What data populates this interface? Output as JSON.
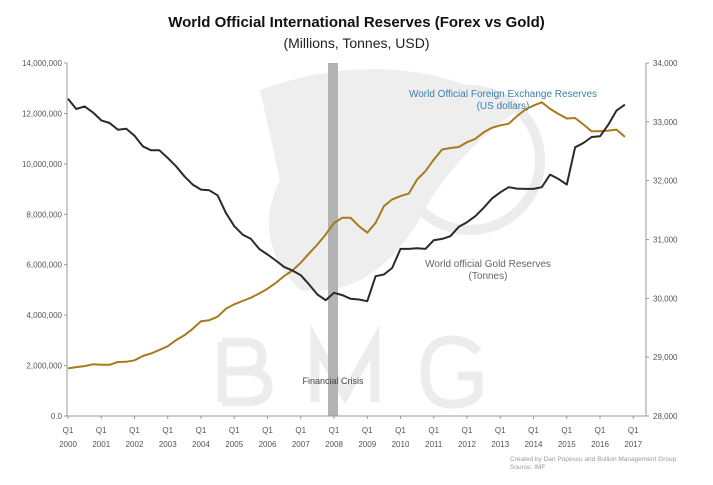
{
  "chart_data": {
    "type": "line",
    "title": "World Official International Reserves (Forex vs Gold)",
    "subtitle": "(Millions, Tonnes, USD)",
    "x_tick_labels": [
      [
        "Q1",
        "2000"
      ],
      [
        "Q1",
        "2001"
      ],
      [
        "Q1",
        "2002"
      ],
      [
        "Q1",
        "2003"
      ],
      [
        "Q1",
        "2004"
      ],
      [
        "Q1",
        "2005"
      ],
      [
        "Q1",
        "2006"
      ],
      [
        "Q1",
        "2007"
      ],
      [
        "Q1",
        "2008"
      ],
      [
        "Q1",
        "2009"
      ],
      [
        "Q1",
        "2010"
      ],
      [
        "Q1",
        "2011"
      ],
      [
        "Q1",
        "2012"
      ],
      [
        "Q1",
        "2013"
      ],
      [
        "Q1",
        "2014"
      ],
      [
        "Q1",
        "2015"
      ],
      [
        "Q1",
        "2016"
      ],
      [
        "Q1",
        "2017"
      ]
    ],
    "x_start": "2000 Q1",
    "x_step": "quarter",
    "left_axis": {
      "range": [
        0,
        14000000
      ],
      "ticks": [
        "0.0",
        "2,000,000",
        "4,000,000",
        "6,000,000",
        "8,000,000",
        "10,000,000",
        "12,000,000",
        "14,000,000"
      ]
    },
    "right_axis": {
      "range": [
        28000,
        34000
      ],
      "ticks": [
        "28,000",
        "29,000",
        "30,000",
        "31,000",
        "32,000",
        "33,000",
        "34,000"
      ]
    },
    "grid": false,
    "series": [
      {
        "name": "World Official Foreign Exchange Reserves\n(US dollars)",
        "axis": "left",
        "color": "#a87a1e",
        "label_color": "#3a7fb0",
        "values": [
          1889000,
          1940000,
          1980000,
          2050000,
          2030000,
          2030000,
          2140000,
          2150000,
          2210000,
          2380000,
          2480000,
          2620000,
          2770000,
          3010000,
          3200000,
          3460000,
          3760000,
          3800000,
          3940000,
          4250000,
          4430000,
          4560000,
          4690000,
          4860000,
          5050000,
          5280000,
          5550000,
          5770000,
          6080000,
          6450000,
          6800000,
          7200000,
          7660000,
          7860000,
          7860000,
          7530000,
          7270000,
          7660000,
          8320000,
          8590000,
          8720000,
          8820000,
          9380000,
          9710000,
          10170000,
          10570000,
          10630000,
          10670000,
          10860000,
          10990000,
          11250000,
          11430000,
          11530000,
          11590000,
          11890000,
          12150000,
          12310000,
          12440000,
          12180000,
          11980000,
          11800000,
          11820000,
          11560000,
          11290000,
          11290000,
          11320000,
          11360000,
          11070000
        ]
      },
      {
        "name": "World official Gold Reserves\n(Tonnes)",
        "axis": "right",
        "color": "#2a2a2a",
        "label_color": "#666666",
        "values": [
          33393,
          33218,
          33263,
          33161,
          33025,
          32980,
          32867,
          32884,
          32765,
          32584,
          32516,
          32516,
          32386,
          32244,
          32075,
          31933,
          31848,
          31836,
          31752,
          31452,
          31226,
          31084,
          31011,
          30841,
          30745,
          30643,
          30535,
          30473,
          30394,
          30235,
          30066,
          29969,
          30094,
          30055,
          29992,
          29981,
          29952,
          30377,
          30405,
          30518,
          30841,
          30841,
          30852,
          30841,
          30988,
          31011,
          31056,
          31214,
          31294,
          31396,
          31537,
          31695,
          31803,
          31889,
          31865,
          31860,
          31860,
          31889,
          32103,
          32030,
          31933,
          32567,
          32641,
          32743,
          32754,
          32952,
          33195,
          33291
        ]
      }
    ],
    "annotations": [
      {
        "text": "Financial Crisis",
        "band": [
          "2007 Q4",
          "2008 Q1"
        ],
        "color": "#b3b3b3"
      }
    ],
    "watermark": "B M G",
    "credit": [
      "Created by Dan Popescu and Bullion Management Group",
      "Source:   IMF"
    ]
  }
}
